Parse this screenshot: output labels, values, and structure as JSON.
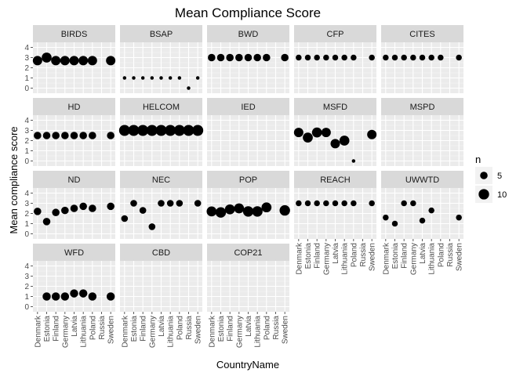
{
  "chart_data": {
    "type": "scatter",
    "title": "Mean Compliance Score",
    "xlabel": "CountryName",
    "ylabel": "Mean compliance score",
    "ylim": [
      -0.5,
      4.5
    ],
    "yticks": [
      0,
      1,
      2,
      3,
      4
    ],
    "categories": [
      "Denmark",
      "Estonia",
      "Finland",
      "Germany",
      "Latvia",
      "Lithuania",
      "Poland",
      "Russia",
      "Sweden"
    ],
    "legend": {
      "title": "n",
      "entries": [
        {
          "label": "5",
          "n": 5
        },
        {
          "label": "10",
          "n": 10
        }
      ],
      "position": "right"
    },
    "grid": true,
    "panels": [
      {
        "name": "BIRDS",
        "points": [
          {
            "x": "Denmark",
            "y": 2.7,
            "n": 8
          },
          {
            "x": "Estonia",
            "y": 3.0,
            "n": 9
          },
          {
            "x": "Finland",
            "y": 2.7,
            "n": 8
          },
          {
            "x": "Germany",
            "y": 2.7,
            "n": 8
          },
          {
            "x": "Latvia",
            "y": 2.7,
            "n": 8
          },
          {
            "x": "Lithuania",
            "y": 2.7,
            "n": 8
          },
          {
            "x": "Poland",
            "y": 2.7,
            "n": 8
          },
          {
            "x": "Sweden",
            "y": 2.7,
            "n": 8
          }
        ]
      },
      {
        "name": "BSAP",
        "points": [
          {
            "x": "Denmark",
            "y": 1.0,
            "n": 1
          },
          {
            "x": "Estonia",
            "y": 1.0,
            "n": 1
          },
          {
            "x": "Finland",
            "y": 1.0,
            "n": 1
          },
          {
            "x": "Germany",
            "y": 1.0,
            "n": 1
          },
          {
            "x": "Latvia",
            "y": 1.0,
            "n": 1
          },
          {
            "x": "Lithuania",
            "y": 1.0,
            "n": 1
          },
          {
            "x": "Poland",
            "y": 1.0,
            "n": 1
          },
          {
            "x": "Russia",
            "y": 0.0,
            "n": 1
          },
          {
            "x": "Sweden",
            "y": 1.0,
            "n": 1
          }
        ]
      },
      {
        "name": "BWD",
        "points": [
          {
            "x": "Denmark",
            "y": 3.0,
            "n": 5
          },
          {
            "x": "Estonia",
            "y": 3.0,
            "n": 5
          },
          {
            "x": "Finland",
            "y": 3.0,
            "n": 5
          },
          {
            "x": "Germany",
            "y": 3.0,
            "n": 5
          },
          {
            "x": "Latvia",
            "y": 3.0,
            "n": 5
          },
          {
            "x": "Lithuania",
            "y": 3.0,
            "n": 5
          },
          {
            "x": "Poland",
            "y": 3.0,
            "n": 5
          },
          {
            "x": "Sweden",
            "y": 3.0,
            "n": 5
          }
        ]
      },
      {
        "name": "CFP",
        "points": [
          {
            "x": "Denmark",
            "y": 3.0,
            "n": 3
          },
          {
            "x": "Estonia",
            "y": 3.0,
            "n": 3
          },
          {
            "x": "Finland",
            "y": 3.0,
            "n": 3
          },
          {
            "x": "Germany",
            "y": 3.0,
            "n": 3
          },
          {
            "x": "Latvia",
            "y": 3.0,
            "n": 3
          },
          {
            "x": "Lithuania",
            "y": 3.0,
            "n": 3
          },
          {
            "x": "Poland",
            "y": 3.0,
            "n": 3
          },
          {
            "x": "Sweden",
            "y": 3.0,
            "n": 3
          }
        ]
      },
      {
        "name": "CITES",
        "points": [
          {
            "x": "Denmark",
            "y": 3.0,
            "n": 3
          },
          {
            "x": "Estonia",
            "y": 3.0,
            "n": 3
          },
          {
            "x": "Finland",
            "y": 3.0,
            "n": 3
          },
          {
            "x": "Germany",
            "y": 3.0,
            "n": 3
          },
          {
            "x": "Latvia",
            "y": 3.0,
            "n": 3
          },
          {
            "x": "Lithuania",
            "y": 3.0,
            "n": 3
          },
          {
            "x": "Poland",
            "y": 3.0,
            "n": 3
          },
          {
            "x": "Sweden",
            "y": 3.0,
            "n": 3
          }
        ]
      },
      {
        "name": "HD",
        "points": [
          {
            "x": "Denmark",
            "y": 2.5,
            "n": 5
          },
          {
            "x": "Estonia",
            "y": 2.5,
            "n": 5
          },
          {
            "x": "Finland",
            "y": 2.5,
            "n": 5
          },
          {
            "x": "Germany",
            "y": 2.5,
            "n": 5
          },
          {
            "x": "Latvia",
            "y": 2.5,
            "n": 5
          },
          {
            "x": "Lithuania",
            "y": 2.5,
            "n": 5
          },
          {
            "x": "Poland",
            "y": 2.5,
            "n": 5
          },
          {
            "x": "Sweden",
            "y": 2.5,
            "n": 5
          }
        ]
      },
      {
        "name": "HELCOM",
        "points": [
          {
            "x": "Denmark",
            "y": 3.0,
            "n": 11
          },
          {
            "x": "Estonia",
            "y": 3.0,
            "n": 11
          },
          {
            "x": "Finland",
            "y": 3.0,
            "n": 11
          },
          {
            "x": "Germany",
            "y": 3.0,
            "n": 11
          },
          {
            "x": "Latvia",
            "y": 3.0,
            "n": 11
          },
          {
            "x": "Lithuania",
            "y": 3.0,
            "n": 11
          },
          {
            "x": "Poland",
            "y": 3.0,
            "n": 11
          },
          {
            "x": "Russia",
            "y": 3.0,
            "n": 11
          },
          {
            "x": "Sweden",
            "y": 3.0,
            "n": 11
          }
        ]
      },
      {
        "name": "IED",
        "points": []
      },
      {
        "name": "MSFD",
        "points": [
          {
            "x": "Denmark",
            "y": 2.8,
            "n": 8
          },
          {
            "x": "Estonia",
            "y": 2.3,
            "n": 9
          },
          {
            "x": "Finland",
            "y": 2.8,
            "n": 9
          },
          {
            "x": "Germany",
            "y": 2.8,
            "n": 8
          },
          {
            "x": "Latvia",
            "y": 1.7,
            "n": 8
          },
          {
            "x": "Lithuania",
            "y": 2.0,
            "n": 9
          },
          {
            "x": "Poland",
            "y": 0.0,
            "n": 1
          },
          {
            "x": "Sweden",
            "y": 2.6,
            "n": 8
          }
        ]
      },
      {
        "name": "MSPD",
        "points": []
      },
      {
        "name": "ND",
        "points": [
          {
            "x": "Denmark",
            "y": 2.2,
            "n": 5
          },
          {
            "x": "Estonia",
            "y": 1.2,
            "n": 5
          },
          {
            "x": "Finland",
            "y": 2.1,
            "n": 5
          },
          {
            "x": "Germany",
            "y": 2.3,
            "n": 5
          },
          {
            "x": "Latvia",
            "y": 2.5,
            "n": 5
          },
          {
            "x": "Lithuania",
            "y": 2.7,
            "n": 5
          },
          {
            "x": "Poland",
            "y": 2.5,
            "n": 5
          },
          {
            "x": "Sweden",
            "y": 2.7,
            "n": 5
          }
        ]
      },
      {
        "name": "NEC",
        "points": [
          {
            "x": "Denmark",
            "y": 1.5,
            "n": 4
          },
          {
            "x": "Estonia",
            "y": 3.0,
            "n": 4
          },
          {
            "x": "Finland",
            "y": 2.3,
            "n": 4
          },
          {
            "x": "Germany",
            "y": 0.7,
            "n": 4
          },
          {
            "x": "Latvia",
            "y": 3.0,
            "n": 4
          },
          {
            "x": "Lithuania",
            "y": 3.0,
            "n": 4
          },
          {
            "x": "Poland",
            "y": 3.0,
            "n": 4
          },
          {
            "x": "Sweden",
            "y": 3.0,
            "n": 4
          }
        ]
      },
      {
        "name": "POP",
        "points": [
          {
            "x": "Denmark",
            "y": 2.2,
            "n": 9
          },
          {
            "x": "Estonia",
            "y": 2.1,
            "n": 10
          },
          {
            "x": "Finland",
            "y": 2.4,
            "n": 9
          },
          {
            "x": "Germany",
            "y": 2.5,
            "n": 9
          },
          {
            "x": "Latvia",
            "y": 2.2,
            "n": 10
          },
          {
            "x": "Lithuania",
            "y": 2.2,
            "n": 10
          },
          {
            "x": "Poland",
            "y": 2.6,
            "n": 9
          },
          {
            "x": "Sweden",
            "y": 2.3,
            "n": 10
          }
        ]
      },
      {
        "name": "REACH",
        "points": [
          {
            "x": "Denmark",
            "y": 3.0,
            "n": 3
          },
          {
            "x": "Estonia",
            "y": 3.0,
            "n": 3
          },
          {
            "x": "Finland",
            "y": 3.0,
            "n": 3
          },
          {
            "x": "Germany",
            "y": 3.0,
            "n": 3
          },
          {
            "x": "Latvia",
            "y": 3.0,
            "n": 3
          },
          {
            "x": "Lithuania",
            "y": 3.0,
            "n": 3
          },
          {
            "x": "Poland",
            "y": 3.0,
            "n": 3
          },
          {
            "x": "Sweden",
            "y": 3.0,
            "n": 3
          }
        ]
      },
      {
        "name": "UWWTD",
        "points": [
          {
            "x": "Denmark",
            "y": 1.6,
            "n": 3
          },
          {
            "x": "Estonia",
            "y": 1.0,
            "n": 3
          },
          {
            "x": "Finland",
            "y": 3.0,
            "n": 3
          },
          {
            "x": "Germany",
            "y": 3.0,
            "n": 3
          },
          {
            "x": "Latvia",
            "y": 1.3,
            "n": 3
          },
          {
            "x": "Lithuania",
            "y": 2.3,
            "n": 3
          },
          {
            "x": "Sweden",
            "y": 1.6,
            "n": 3
          }
        ]
      },
      {
        "name": "WFD",
        "points": [
          {
            "x": "Estonia",
            "y": 1.0,
            "n": 6
          },
          {
            "x": "Finland",
            "y": 1.0,
            "n": 6
          },
          {
            "x": "Germany",
            "y": 1.0,
            "n": 6
          },
          {
            "x": "Latvia",
            "y": 1.3,
            "n": 6
          },
          {
            "x": "Lithuania",
            "y": 1.3,
            "n": 6
          },
          {
            "x": "Poland",
            "y": 1.0,
            "n": 6
          },
          {
            "x": "Sweden",
            "y": 1.0,
            "n": 6
          }
        ]
      },
      {
        "name": "CBD",
        "points": []
      },
      {
        "name": "COP21",
        "points": []
      }
    ]
  }
}
